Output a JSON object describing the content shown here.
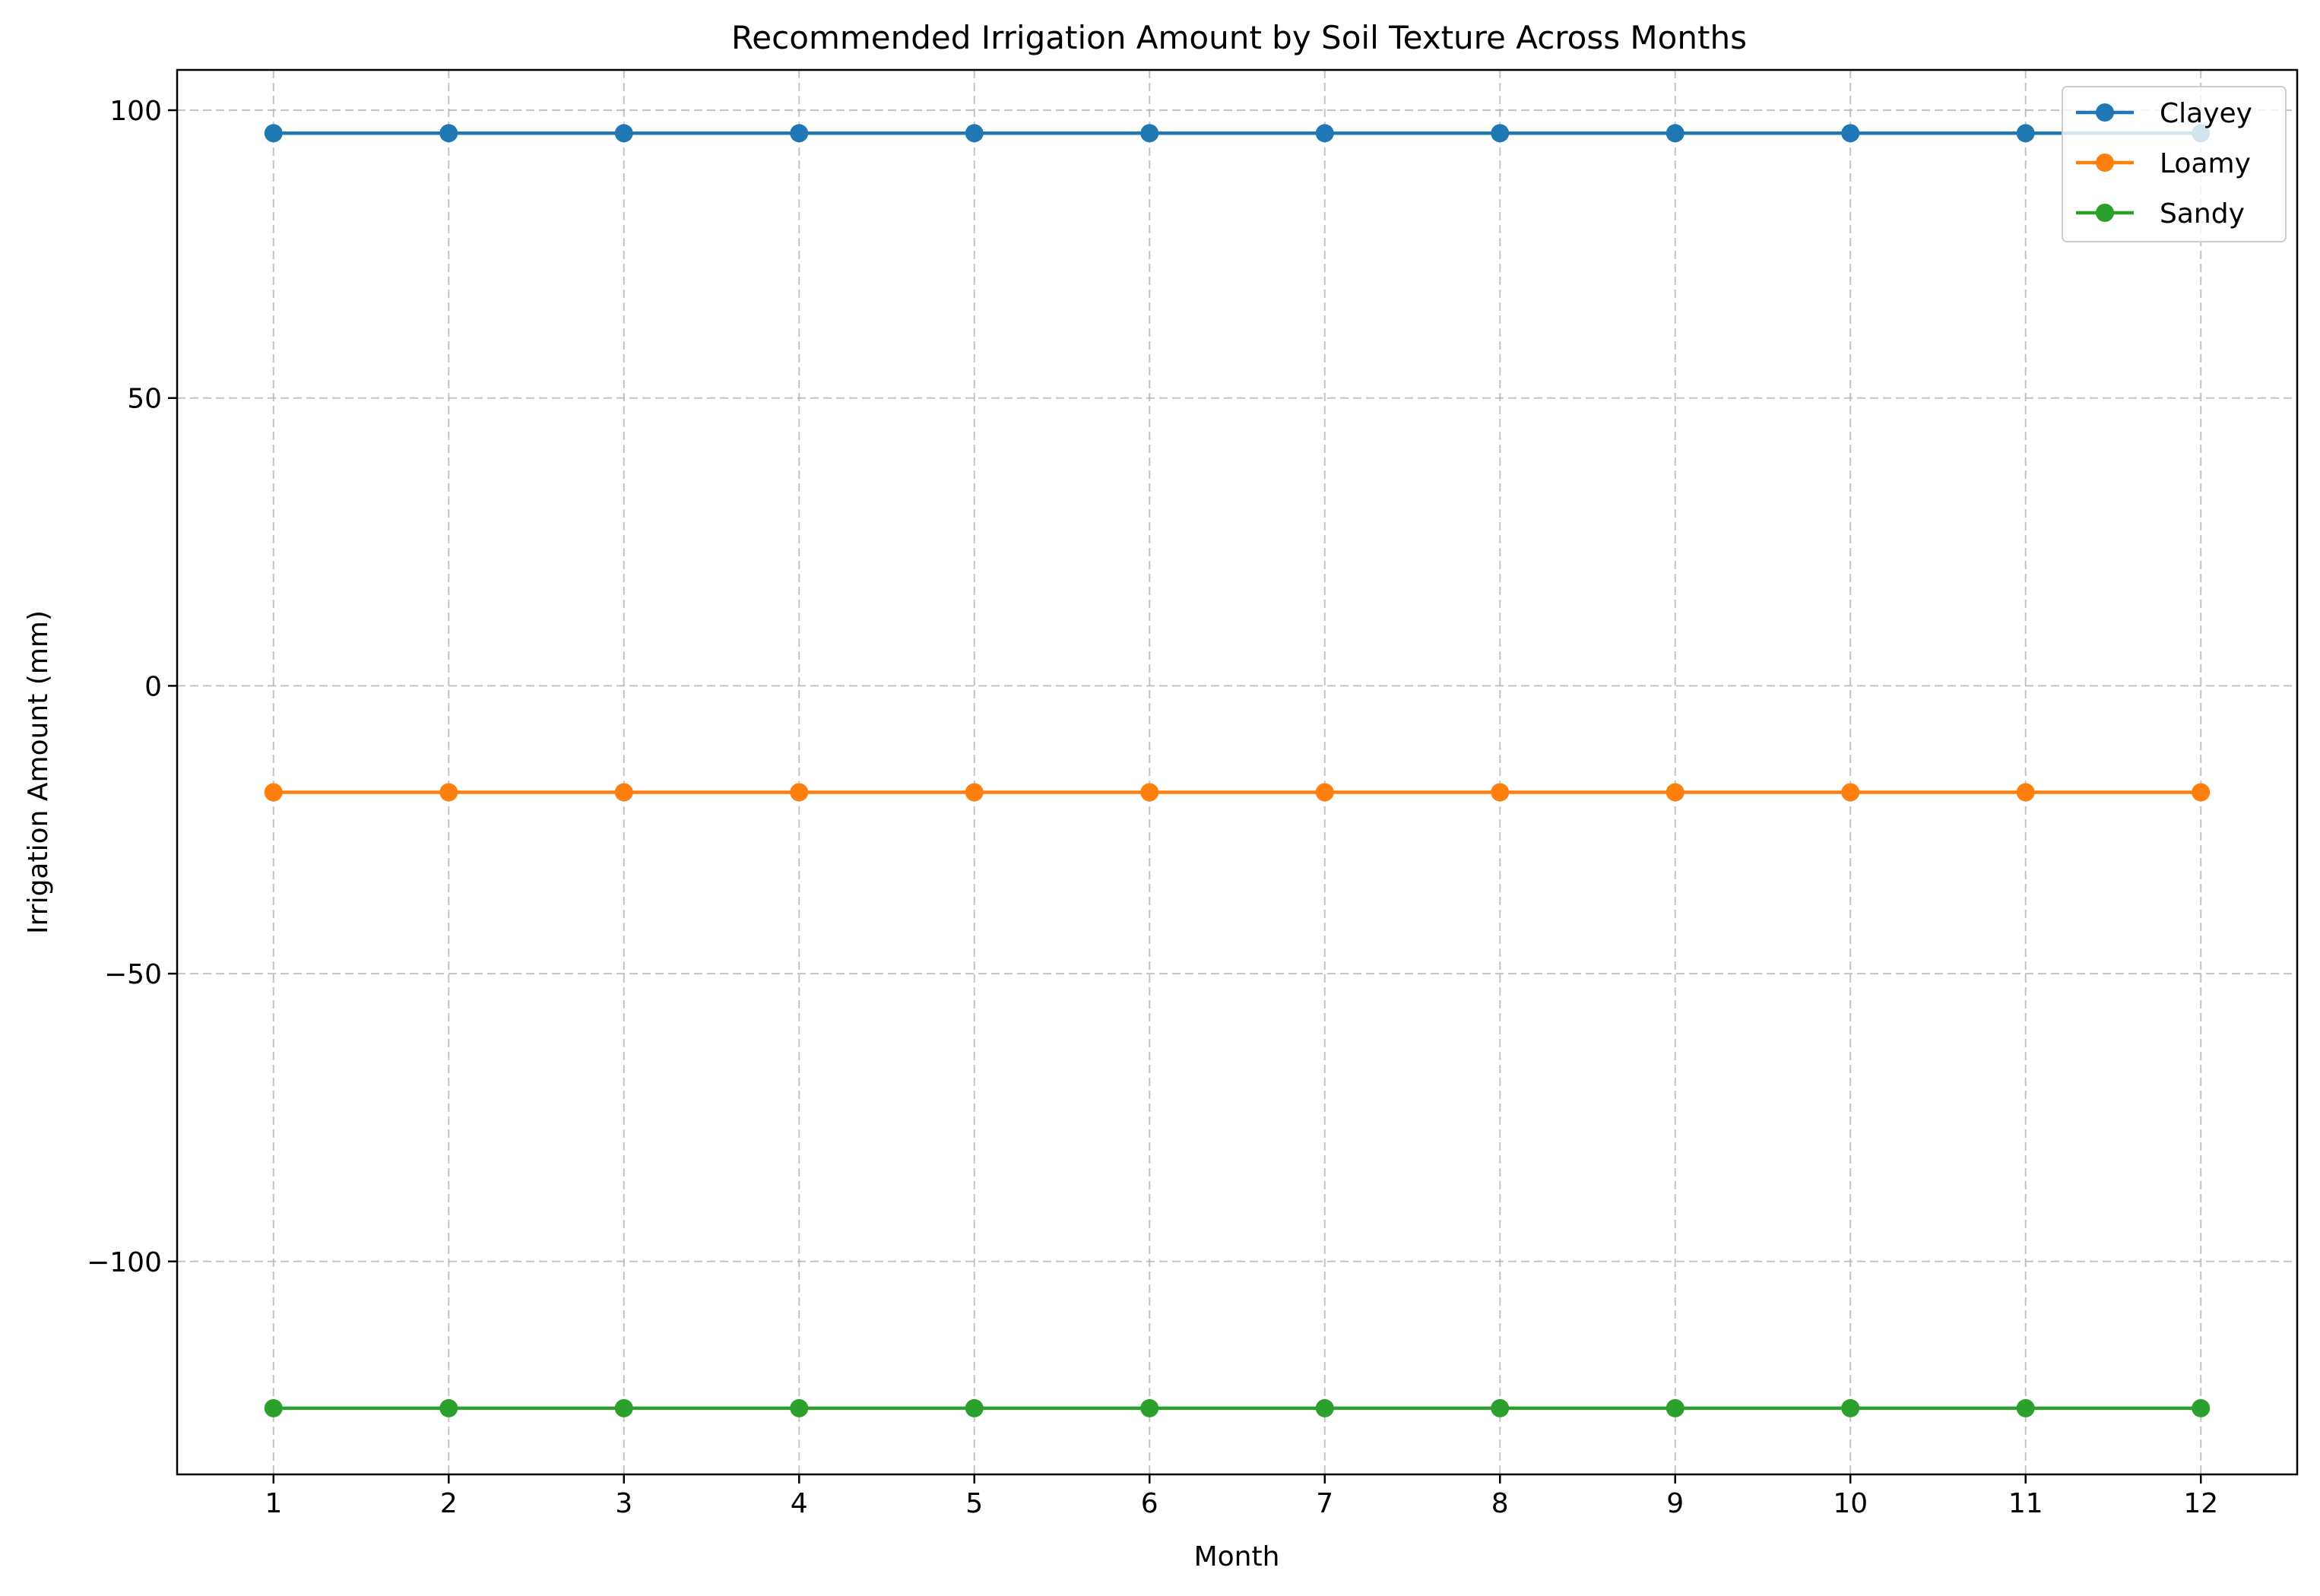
{
  "chart_data": {
    "type": "line",
    "title": "Recommended Irrigation Amount by Soil Texture Across Months",
    "xlabel": "Month",
    "ylabel": "Irrigation Amount (mm)",
    "x": [
      1,
      2,
      3,
      4,
      5,
      6,
      7,
      8,
      9,
      10,
      11,
      12
    ],
    "xlim": [
      0.45,
      12.55
    ],
    "ylim": [
      -137,
      107
    ],
    "yticks": [
      100,
      50,
      0,
      -50,
      -100
    ],
    "ytick_labels": [
      "100",
      "50",
      "0",
      "−50",
      "−100"
    ],
    "grid": true,
    "legend_position": "top-right",
    "series": [
      {
        "name": "Clayey",
        "color": "#1f77b4",
        "values": [
          96,
          96,
          96,
          96,
          96,
          96,
          96,
          96,
          96,
          96,
          96,
          96
        ]
      },
      {
        "name": "Loamy",
        "color": "#ff7f0e",
        "values": [
          -18.5,
          -18.5,
          -18.5,
          -18.5,
          -18.5,
          -18.5,
          -18.5,
          -18.5,
          -18.5,
          -18.5,
          -18.5,
          -18.5
        ]
      },
      {
        "name": "Sandy",
        "color": "#2ca02c",
        "values": [
          -125.5,
          -125.5,
          -125.5,
          -125.5,
          -125.5,
          -125.5,
          -125.5,
          -125.5,
          -125.5,
          -125.5,
          -125.5,
          -125.5
        ]
      }
    ]
  }
}
